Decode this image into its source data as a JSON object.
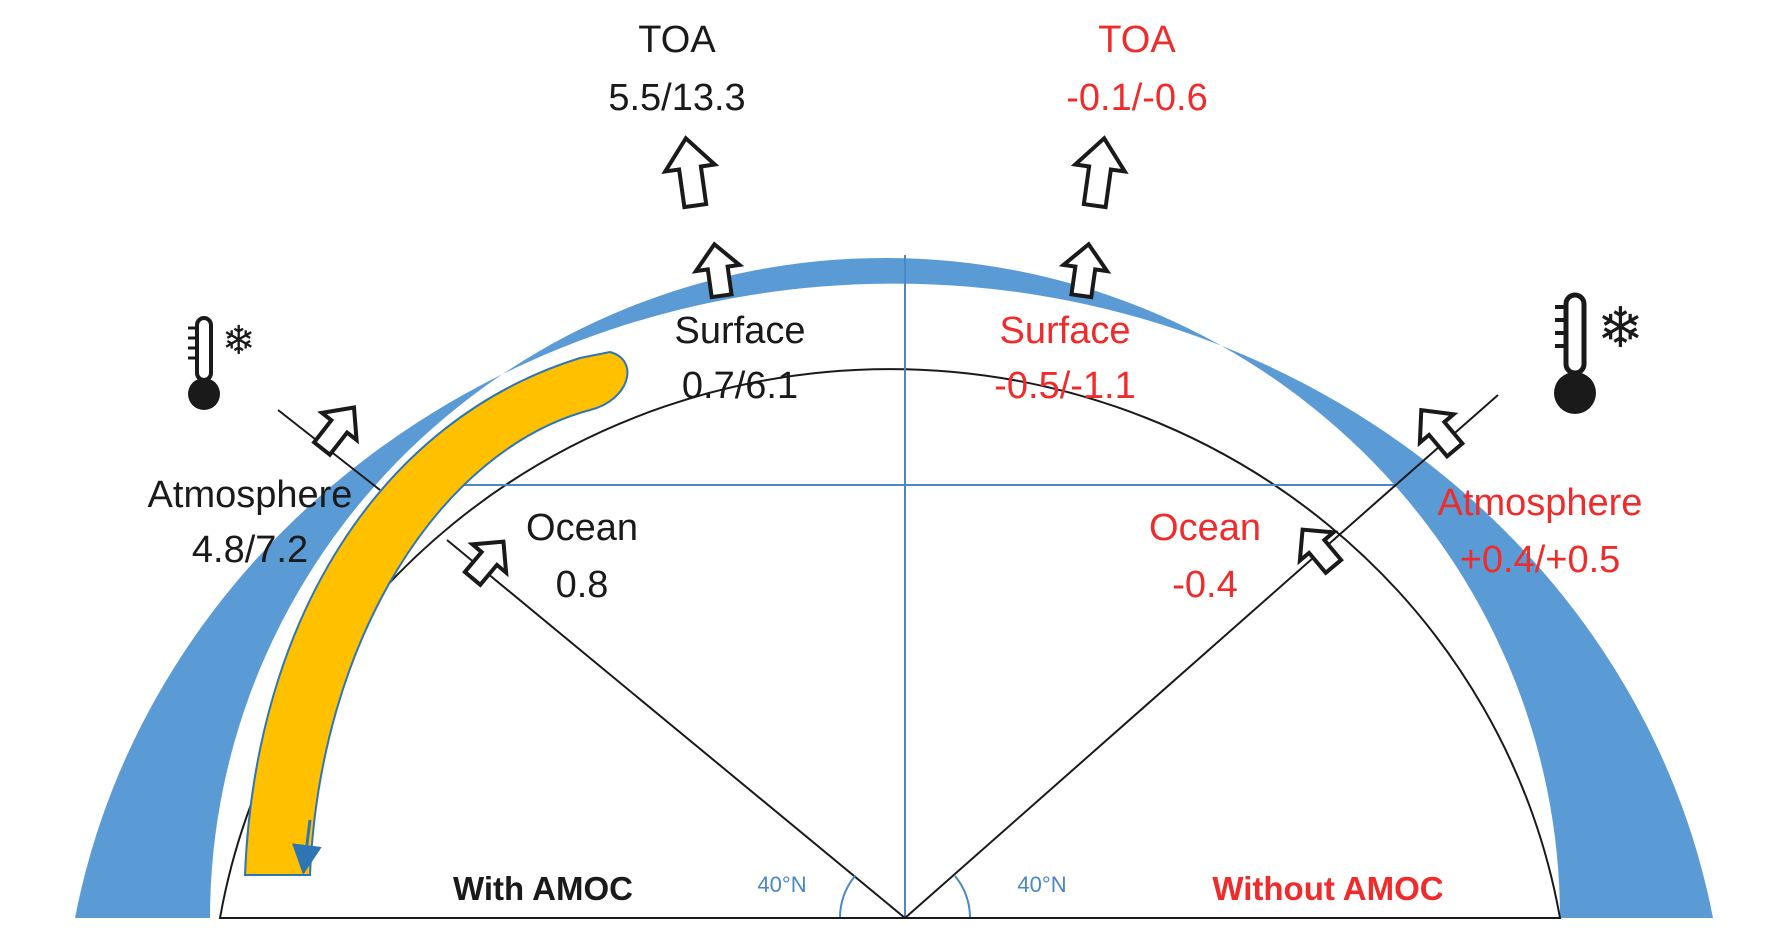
{
  "left": {
    "toa_label": "TOA",
    "toa_value": "5.5/13.3",
    "surface_label": "Surface",
    "surface_value": "0.7/6.1",
    "atmosphere_label": "Atmosphere",
    "atmosphere_value": "4.8/7.2",
    "ocean_label": "Ocean",
    "ocean_value": "0.8",
    "caption": "With AMOC",
    "angle": "40°N"
  },
  "right": {
    "toa_label": "TOA",
    "toa_value": "-0.1/-0.6",
    "surface_label": "Surface",
    "surface_value": "-0.5/-1.1",
    "atmosphere_label": "Atmosphere",
    "atmosphere_value": "+0.4/+0.5",
    "ocean_label": "Ocean",
    "ocean_value": "-0.4",
    "caption": "Without AMOC",
    "angle": "40°N"
  },
  "icons": {
    "left": "thermometer-snowflake-icon",
    "right": "thermometer-snowflake-icon"
  },
  "colors": {
    "atmosphere_band": "#5b9bd5",
    "current_arrow": "#ffc000",
    "current_outline": "#2e75b6",
    "gridline": "#4a86c8",
    "without_text": "#ef2b2b",
    "with_text": "#1a1a1a"
  }
}
